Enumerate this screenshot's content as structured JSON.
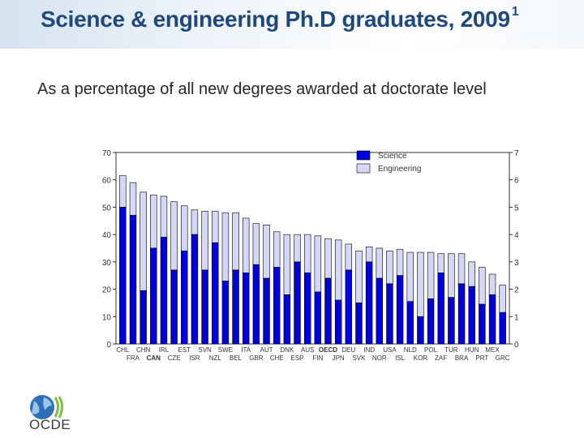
{
  "header": {
    "title": "Science & engineering Ph.D graduates, 2009",
    "title_footnote": "1",
    "subtitle": "As a percentage of all new degrees awarded at doctorate level"
  },
  "logo": {
    "text": "OCDE",
    "icon": "globe-logo-icon"
  },
  "colors": {
    "science": "#0000dd",
    "engineering": "#d4d8f6",
    "stroke": "#000000"
  },
  "chart_data": {
    "type": "bar",
    "stacked": true,
    "categories": [
      "CHL",
      "FRA",
      "CHN",
      "CAN",
      "IRL",
      "CZE",
      "EST",
      "ISR",
      "SVN",
      "NZL",
      "SWE",
      "BEL",
      "ITA",
      "GBR",
      "AUT",
      "CHE",
      "DNK",
      "ESP",
      "AUS",
      "FIN",
      "OECD",
      "JPN",
      "DEU",
      "SVK",
      "IND",
      "NOR",
      "USA",
      "ISL",
      "NLD",
      "KOR",
      "POL",
      "ZAF",
      "TUR",
      "BRA",
      "HUN",
      "PRT",
      "MEX",
      "GRC"
    ],
    "bold_categories": [
      "CAN",
      "OECD"
    ],
    "series": [
      {
        "name": "Science",
        "values": [
          50,
          47,
          19.5,
          35,
          39,
          27,
          34,
          40,
          27,
          37,
          23,
          27,
          26,
          29,
          24,
          28,
          18,
          30,
          26,
          19,
          24,
          16,
          27,
          15,
          30,
          24,
          22,
          25,
          15.5,
          10,
          16.5,
          26,
          17,
          22,
          21,
          14.5,
          18,
          11.5
        ]
      },
      {
        "name": "Engineering",
        "values": [
          11.5,
          12,
          36,
          19.5,
          15,
          25,
          16.5,
          9,
          21.5,
          11.5,
          25,
          21,
          20,
          15,
          19.5,
          13,
          22,
          10,
          14,
          20.5,
          14.5,
          22,
          9.5,
          19,
          5.5,
          11,
          12,
          9.5,
          18,
          23.5,
          17,
          7,
          16,
          11,
          9,
          13.5,
          7.5,
          10
        ]
      }
    ],
    "yticks": [
      0,
      10,
      20,
      30,
      40,
      50,
      60,
      70
    ],
    "ylim": [
      0,
      70
    ],
    "legend_position": "top-right",
    "grid": false
  }
}
